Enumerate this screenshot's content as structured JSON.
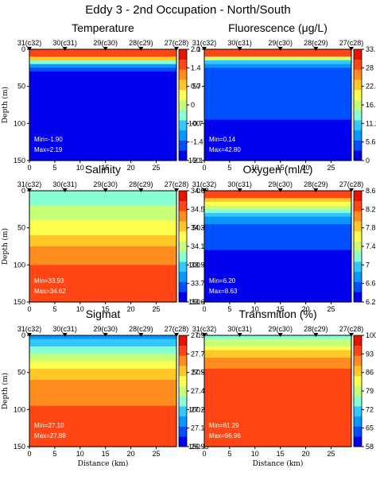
{
  "figure_title": "Eddy 3 - 2nd Occupation - North/South",
  "chart_data": [
    {
      "type": "heatmap",
      "title": "Temperature",
      "ylabel": "Depth (m)",
      "xlabel": "",
      "xlim": [
        0,
        29
      ],
      "ylim": [
        150,
        0
      ],
      "x_ticks": [
        0,
        5,
        10,
        15,
        20,
        25
      ],
      "y_ticks": [
        0,
        50,
        100,
        150
      ],
      "stations": [
        "31(c32)",
        "30(c31)",
        "29(c30)",
        "28(c29)",
        "27(c28)"
      ],
      "station_x": [
        0,
        7,
        15,
        22,
        29
      ],
      "colorbar_ticks": [
        "2.1",
        "1.4",
        "0.7",
        "0",
        "-0.7",
        "-1.4",
        "-2.1"
      ],
      "colors": [
        "#0000ee",
        "#0050ff",
        "#0a96ff",
        "#32c8ff",
        "#87ffd2",
        "#c8ff78",
        "#ffff50",
        "#ffc828",
        "#ff8c1e",
        "#ff4614",
        "#e61400"
      ],
      "annotations": [
        "Min=-1.90",
        "Max=2.19"
      ],
      "profile": [
        [
          0,
          0.95
        ],
        [
          10,
          0.9
        ],
        [
          20,
          0.2
        ],
        [
          35,
          0.02
        ],
        [
          50,
          -0.08
        ],
        [
          80,
          -0.55
        ],
        [
          100,
          -0.8
        ],
        [
          150,
          -1.0
        ]
      ]
    },
    {
      "type": "heatmap",
      "title": "Fluorescence (μg/L)",
      "ylabel": "",
      "xlabel": "",
      "xlim": [
        0,
        29
      ],
      "ylim": [
        150,
        0
      ],
      "x_ticks": [
        0,
        5,
        10,
        15,
        20,
        25
      ],
      "y_ticks": [
        0,
        50,
        100,
        150
      ],
      "stations": [
        "31(c32)",
        "30(c31)",
        "29(c30)",
        "28(c29)",
        "27(c28)"
      ],
      "station_x": [
        0,
        7,
        15,
        22,
        29
      ],
      "colorbar_ticks": [
        "33.6",
        "28",
        "22.4",
        "16.8",
        "11.2",
        "5.6",
        "0"
      ],
      "colors": [
        "#0000ee",
        "#0050ff",
        "#0a96ff",
        "#32c8ff",
        "#87ffd2",
        "#c8ff78",
        "#ffff50",
        "#ffc828",
        "#ff8c1e",
        "#ff4614",
        "#e61400"
      ],
      "annotations": [
        "Min=0.14",
        "Max=42.80"
      ],
      "profile": [
        [
          0,
          0.95
        ],
        [
          8,
          0.85
        ],
        [
          15,
          0.35
        ],
        [
          25,
          0.15
        ],
        [
          40,
          0.08
        ],
        [
          150,
          0.02
        ]
      ]
    },
    {
      "type": "heatmap",
      "title": "Salinity",
      "ylabel": "Depth (m)",
      "xlabel": "",
      "xlim": [
        0,
        29
      ],
      "ylim": [
        150,
        0
      ],
      "x_ticks": [
        0,
        5,
        10,
        15,
        20,
        25
      ],
      "y_ticks": [
        0,
        50,
        100,
        150
      ],
      "stations": [
        "31(c32)",
        "30(c31)",
        "29(c30)",
        "28(c29)",
        "27(c28)"
      ],
      "station_x": [
        0,
        7,
        15,
        22,
        29
      ],
      "colorbar_ticks": [
        "34.68",
        "34.5",
        "34.32",
        "34.14",
        "33.96",
        "33.78",
        "33.6"
      ],
      "colors": [
        "#0000ee",
        "#0050ff",
        "#0a96ff",
        "#32c8ff",
        "#87ffd2",
        "#c8ff78",
        "#ffff50",
        "#ffc828",
        "#ff8c1e",
        "#ff4614",
        "#e61400"
      ],
      "annotations": [
        "Min=33.93",
        "Max=34.62"
      ],
      "profile": [
        [
          0,
          0.35
        ],
        [
          20,
          0.45
        ],
        [
          40,
          0.55
        ],
        [
          70,
          0.72
        ],
        [
          100,
          0.86
        ],
        [
          150,
          0.92
        ]
      ]
    },
    {
      "type": "heatmap",
      "title": "Oxygen (ml/L)",
      "ylabel": "",
      "xlabel": "",
      "xlim": [
        0,
        29
      ],
      "ylim": [
        150,
        0
      ],
      "x_ticks": [
        0,
        5,
        10,
        15,
        20,
        25
      ],
      "y_ticks": [
        0,
        50,
        100,
        150
      ],
      "stations": [
        "31(c32)",
        "30(c31)",
        "29(c30)",
        "28(c29)",
        "27(c28)"
      ],
      "station_x": [
        0,
        7,
        15,
        22,
        29
      ],
      "colorbar_ticks": [
        "8.6",
        "8.2",
        "7.8",
        "7.4",
        "7",
        "6.6",
        "6.2"
      ],
      "colors": [
        "#0000ee",
        "#0050ff",
        "#0a96ff",
        "#32c8ff",
        "#87ffd2",
        "#c8ff78",
        "#ffff50",
        "#ffc828",
        "#ff8c1e",
        "#ff4614",
        "#e61400"
      ],
      "annotations": [
        "Min=6.20",
        "Max=8.63"
      ],
      "profile": [
        [
          0,
          0.95
        ],
        [
          8,
          0.85
        ],
        [
          18,
          0.6
        ],
        [
          30,
          0.3
        ],
        [
          45,
          0.12
        ],
        [
          80,
          0.05
        ],
        [
          150,
          0.02
        ]
      ]
    },
    {
      "type": "heatmap",
      "title": "Sigmat",
      "ylabel": "Depth (m)",
      "xlabel": "Distance (km)",
      "xlim": [
        0,
        29
      ],
      "ylim": [
        150,
        0
      ],
      "x_ticks": [
        0,
        5,
        10,
        15,
        20,
        25
      ],
      "y_ticks": [
        0,
        50,
        100,
        150
      ],
      "stations": [
        "31(c32)",
        "30(c31)",
        "29(c30)",
        "28(c29)",
        "27(c28)"
      ],
      "station_x": [
        0,
        7,
        15,
        22,
        29
      ],
      "colorbar_ticks": [
        "27.91",
        "27.75",
        "27.59",
        "27.43",
        "27.27",
        "27.11",
        "26.95"
      ],
      "colors": [
        "#0000ee",
        "#0050ff",
        "#0a96ff",
        "#32c8ff",
        "#87ffd2",
        "#c8ff78",
        "#ffff50",
        "#ffc828",
        "#ff8c1e",
        "#ff4614",
        "#e61400"
      ],
      "annotations": [
        "Min=27.10",
        "Max=27.88"
      ],
      "profile": [
        [
          0,
          0.15
        ],
        [
          15,
          0.35
        ],
        [
          30,
          0.52
        ],
        [
          50,
          0.7
        ],
        [
          80,
          0.82
        ],
        [
          120,
          0.9
        ],
        [
          150,
          0.93
        ]
      ]
    },
    {
      "type": "heatmap",
      "title": "Transmition (%)",
      "ylabel": "",
      "xlabel": "Distance (km)",
      "xlim": [
        0,
        29
      ],
      "ylim": [
        150,
        0
      ],
      "x_ticks": [
        0,
        5,
        10,
        15,
        20,
        25
      ],
      "y_ticks": [
        0,
        50,
        100,
        150
      ],
      "stations": [
        "31(c32)",
        "30(c31)",
        "29(c30)",
        "28(c29)",
        "27(c28)"
      ],
      "station_x": [
        0,
        7,
        15,
        22,
        29
      ],
      "colorbar_ticks": [
        "100",
        "93",
        "86",
        "79",
        "72",
        "65",
        "58"
      ],
      "colors": [
        "#0000ee",
        "#0050ff",
        "#0a96ff",
        "#32c8ff",
        "#87ffd2",
        "#c8ff78",
        "#ffff50",
        "#ffc828",
        "#ff8c1e",
        "#ff4614",
        "#e61400"
      ],
      "annotations": [
        "Min=61.29",
        "Max=96.96"
      ],
      "profile": [
        [
          0,
          0.35
        ],
        [
          10,
          0.5
        ],
        [
          25,
          0.72
        ],
        [
          45,
          0.85
        ],
        [
          80,
          0.9
        ],
        [
          150,
          0.93
        ]
      ]
    }
  ]
}
